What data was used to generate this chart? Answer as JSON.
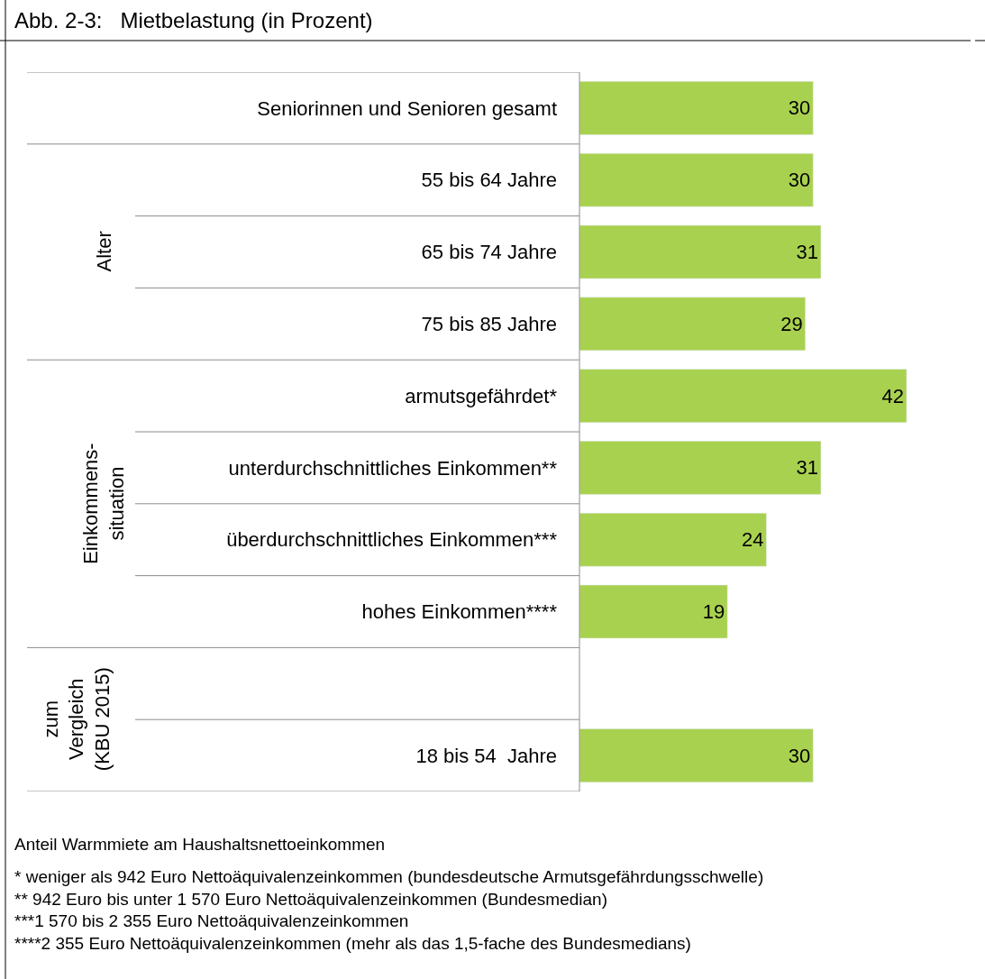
{
  "chart_data": {
    "type": "bar",
    "orientation": "horizontal",
    "title": "Abb. 2-3:   Mietbelastung (in Prozent)",
    "categories": [
      "Seniorinnen und Senioren gesamt",
      "55 bis 64 Jahre",
      "65 bis 74 Jahre",
      "75 bis 85 Jahre",
      "armutsgefährdet*",
      "unterdurchschnittliches Einkommen**",
      "überdurchschnittliches Einkommen***",
      "hohes Einkommen****",
      null,
      "18 bis 54  Jahre"
    ],
    "values": [
      30,
      30,
      31,
      29,
      42,
      31,
      24,
      19,
      null,
      30
    ],
    "color": "#a9d150",
    "data_labels": true,
    "annotations": [
      "Alter",
      "Einkommens-\nsituation",
      "zum\nVergleich\n(KBU 2015)",
      "Anteil Warmmiete am Haushaltsnettoeinkommen",
      "* weniger als 942 Euro Nettoäquivalenzeinkommen (bundesdeutsche Armutsgefährdungsschwelle)\n** 942 Euro bis unter 1 570 Euro Nettoäquivalenzeinkommen (Bundesmedian)\n***1 570 bis 2 355 Euro Nettoäquivalenzeinkommen\n****2 355 Euro Nettoäquivalenzeinkommen (mehr als das 1,5-fache des Bundesmedians)"
    ]
  }
}
